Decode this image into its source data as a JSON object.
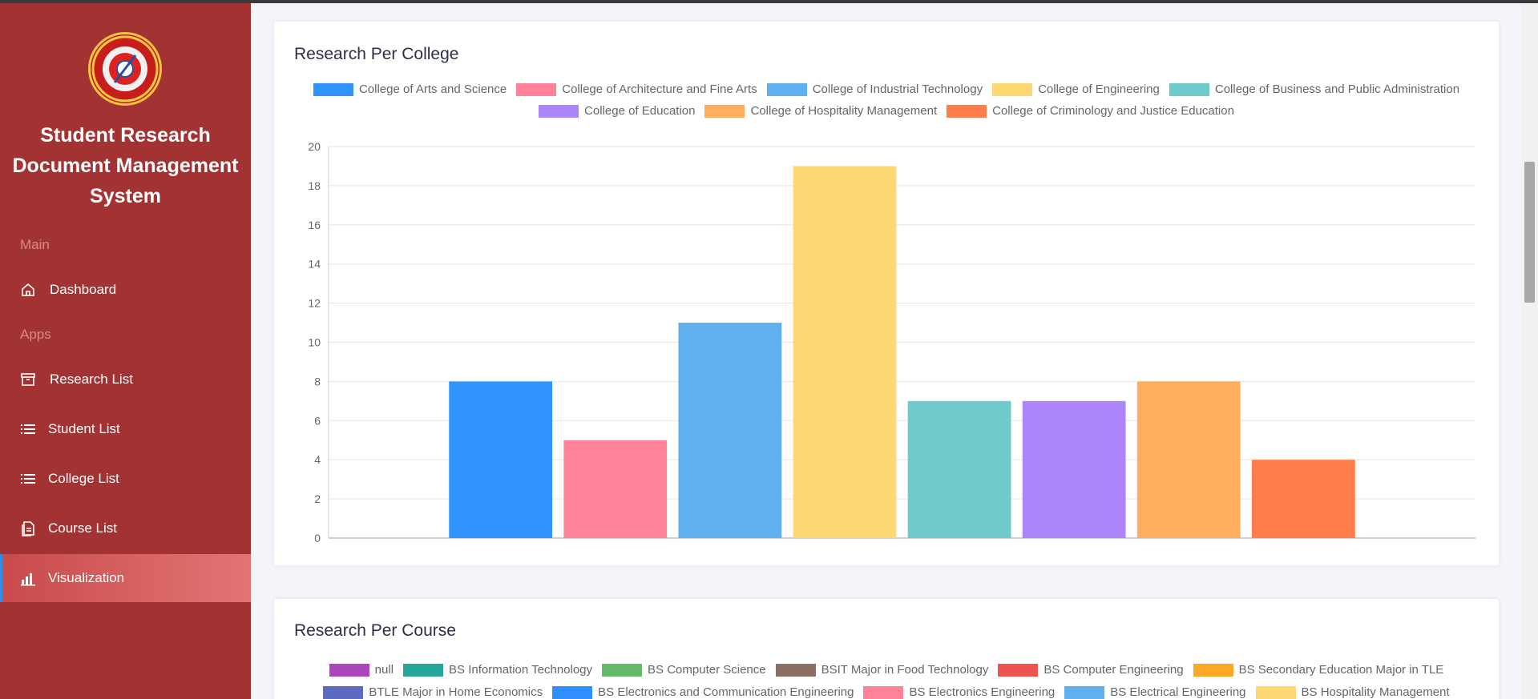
{
  "app": {
    "title": "Student Research Document Management System"
  },
  "sidebar": {
    "sections": [
      {
        "label": "Main"
      },
      {
        "label": "Apps"
      }
    ],
    "items": [
      {
        "label": "Dashboard",
        "icon": "home-icon"
      },
      {
        "label": "Research List",
        "icon": "archive-icon"
      },
      {
        "label": "Student List",
        "icon": "list-icon"
      },
      {
        "label": "College List",
        "icon": "list-icon"
      },
      {
        "label": "Course List",
        "icon": "document-icon"
      },
      {
        "label": "Visualization",
        "icon": "bar-chart-icon",
        "active": true
      }
    ]
  },
  "college_card": {
    "title": "Research Per College"
  },
  "course_card": {
    "title": "Research Per Course",
    "legend": [
      {
        "name": "null",
        "color": "#ab47bc"
      },
      {
        "name": "BS Information Technology",
        "color": "#26a69a"
      },
      {
        "name": "BS Computer Science",
        "color": "#66bb6a"
      },
      {
        "name": "BSIT Major in Food Technology",
        "color": "#8d6e63"
      },
      {
        "name": "BS Computer Engineering",
        "color": "#ef5350"
      },
      {
        "name": "BS Secondary Education Major in TLE",
        "color": "#ffa726"
      },
      {
        "name": "BTLE Major in Home Economics",
        "color": "#5c6bc0"
      },
      {
        "name": "BS Electronics and Communication Engineering",
        "color": "#2f8fff"
      },
      {
        "name": "BS Electronics Engineering",
        "color": "#ff829a"
      },
      {
        "name": "BS Electrical Engineering",
        "color": "#5eb0ef"
      },
      {
        "name": "BS Hospitality Management",
        "color": "#ffd873"
      }
    ]
  },
  "chart_data": {
    "type": "bar",
    "title": "Research Per College",
    "categories": [
      "College of Arts and Science",
      "College of Architecture and Fine Arts",
      "College of Industrial Technology",
      "College of Engineering",
      "College of Business and Public Administration",
      "College of Education",
      "College of Hospitality Management",
      "College of Criminology and Justice Education"
    ],
    "values": [
      8,
      5,
      11,
      19,
      7,
      7,
      8,
      4
    ],
    "colors": [
      "#3094ff",
      "#ff829a",
      "#5eb0ef",
      "#ffd873",
      "#6fcbcb",
      "#ad85fa",
      "#ffad5f",
      "#ff7d4a"
    ],
    "ylim": [
      0,
      20
    ],
    "yticks": [
      0,
      2,
      4,
      6,
      8,
      10,
      12,
      14,
      16,
      18,
      20
    ],
    "grid": true,
    "legend": "top"
  }
}
